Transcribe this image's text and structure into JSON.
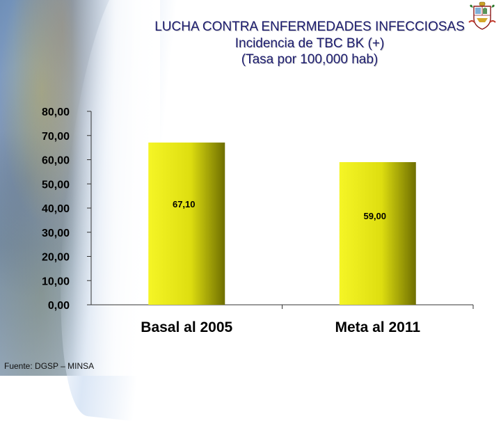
{
  "header": {
    "title": "LUCHA CONTRA ENFERMEDADES INFECCIOSAS",
    "subtitle": "Incidencia de TBC BK (+)",
    "unit": "(Tasa por 100,000 hab)"
  },
  "footer": {
    "source": "Fuente: DGSP – MINSA"
  },
  "colors": {
    "bar_light": "#f5f526",
    "bar_dark": "#6e6e00",
    "title": "#1c1c6e"
  },
  "icons": {
    "emblem": "peru-coat-of-arms-icon"
  },
  "chart_data": {
    "type": "bar",
    "title": "LUCHA CONTRA ENFERMEDADES INFECCIOSAS",
    "xlabel": "",
    "ylabel": "",
    "categories": [
      "Basal al 2005",
      "Meta al 2011"
    ],
    "values": [
      67.1,
      59.0
    ],
    "value_labels": [
      "67,10",
      "59,00"
    ],
    "ylim": [
      0,
      80
    ],
    "yticks": [
      0,
      10,
      20,
      30,
      40,
      50,
      60,
      70,
      80
    ],
    "ytick_labels": [
      "0,00",
      "10,00",
      "20,00",
      "30,00",
      "40,00",
      "50,00",
      "60,00",
      "70,00",
      "80,00"
    ],
    "grid": false,
    "legend": "none"
  }
}
